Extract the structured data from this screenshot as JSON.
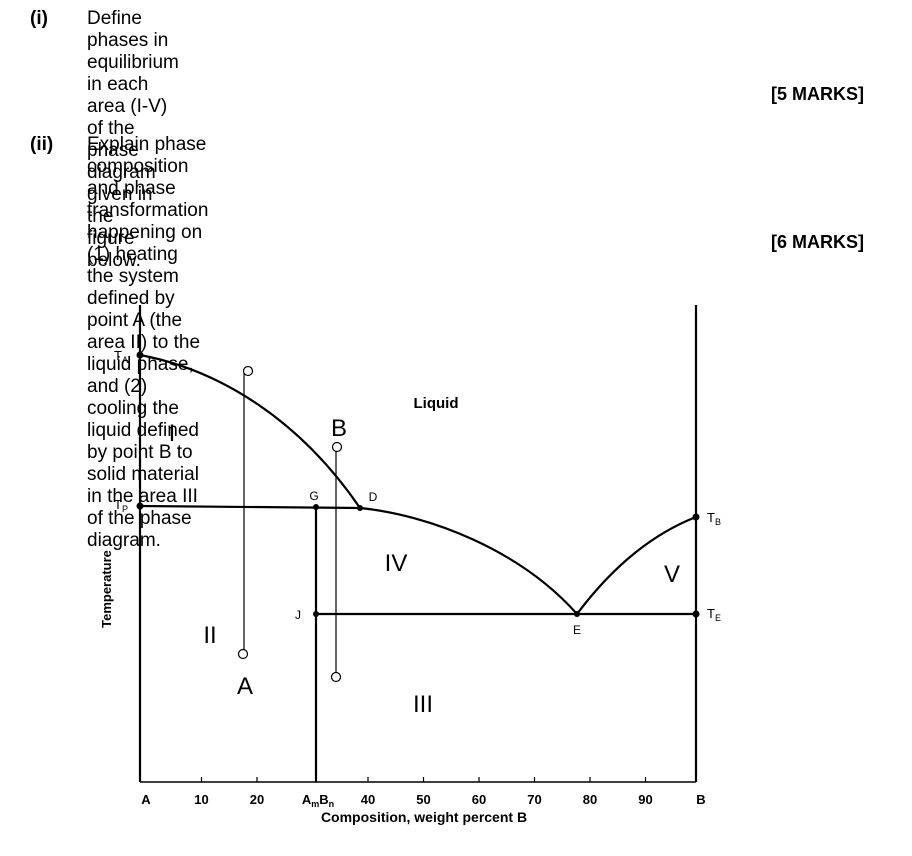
{
  "questions": [
    {
      "number": "(i)",
      "lines": [
        "Define phases in equilibrium in each area (I-V) of the phase diagram given in the",
        "figure below."
      ],
      "marks": "[5 MARKS]"
    },
    {
      "number": "(ii)",
      "lines": [
        "Explain phase composition and phase transformation happening on (1) heating",
        "the system defined by point A (the area II) to the liquid phase, and (2) cooling the",
        "liquid defined by point B to solid material in the area III of the phase diagram."
      ],
      "marks": "[6 MARKS]"
    }
  ],
  "diagram": {
    "y_axis_label": "Temperature",
    "x_axis_label": "Composition, weight percent B",
    "x_ticks": [
      {
        "value": 0,
        "label": "A"
      },
      {
        "value": 10,
        "label": "10"
      },
      {
        "value": 20,
        "label": "20"
      },
      {
        "value": 40,
        "label": "40"
      },
      {
        "value": 50,
        "label": "50"
      },
      {
        "value": 60,
        "label": "60"
      },
      {
        "value": 70,
        "label": "70"
      },
      {
        "value": 80,
        "label": "80"
      },
      {
        "value": 90,
        "label": "90"
      },
      {
        "value": 100,
        "label": "B"
      }
    ],
    "compound_label": {
      "base1": "A",
      "sub1": "m",
      "base2": "B",
      "sub2": "n"
    },
    "temperature_labels": {
      "TA": {
        "base": "T",
        "sub": "A"
      },
      "TP": {
        "base": "T",
        "sub": "P"
      },
      "TB": {
        "base": "T",
        "sub": "B"
      },
      "TE": {
        "base": "T",
        "sub": "E"
      }
    },
    "point_labels": {
      "G": "G",
      "D": "D",
      "J": "J",
      "E": "E",
      "A": "A",
      "B": "B"
    },
    "region_labels": {
      "liquid": "Liquid",
      "I": "I",
      "II": "II",
      "III": "III",
      "IV": "IV",
      "V": "V"
    }
  }
}
